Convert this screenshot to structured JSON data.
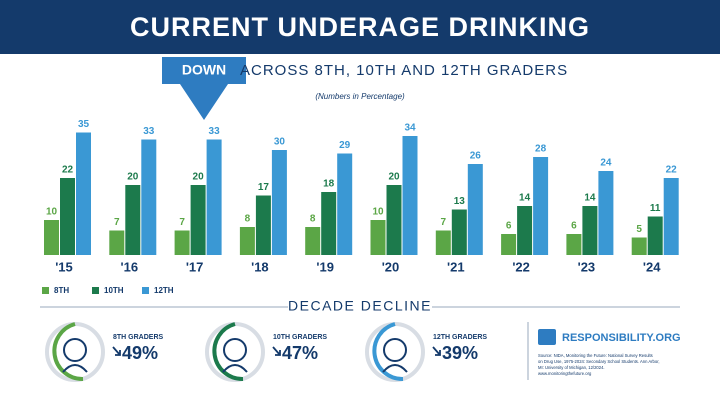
{
  "chart_data": {
    "type": "bar",
    "title": "CURRENT UNDERAGE DRINKING",
    "badge": "DOWN",
    "subtitle": "ACROSS 8TH, 10TH AND 12TH GRADERS",
    "note": "(Numbers in Percentage)",
    "categories": [
      "'15",
      "'16",
      "'17",
      "'18",
      "'19",
      "'20",
      "'21",
      "'22",
      "'23",
      "'24"
    ],
    "series": [
      {
        "name": "8TH",
        "color": "#5ba646",
        "values": [
          10,
          7,
          7,
          8,
          8,
          10,
          7,
          6,
          6,
          5
        ]
      },
      {
        "name": "10TH",
        "color": "#1c7a4c",
        "values": [
          22,
          20,
          20,
          17,
          18,
          20,
          13,
          14,
          14,
          11
        ]
      },
      {
        "name": "12TH",
        "color": "#3a98d4",
        "values": [
          35,
          33,
          33,
          30,
          29,
          34,
          26,
          28,
          24,
          22
        ]
      }
    ]
  },
  "decline": {
    "title": "DECADE DECLINE",
    "items": [
      {
        "label": "8TH GRADERS",
        "value": "49%"
      },
      {
        "label": "10TH GRADERS",
        "value": "47%"
      },
      {
        "label": "12TH GRADERS",
        "value": "39%"
      }
    ]
  },
  "brand": {
    "name": "RESPONSIBILITY.ORG",
    "source": [
      "Source: NIDA, Monitoring the Future: National Survey Results",
      "on Drug Use, 1975-2024: Secondary School Students. Ann Arbor,",
      "MI: University of Michigan, 12/2024.",
      "www.monitoringthefuture.org"
    ]
  }
}
